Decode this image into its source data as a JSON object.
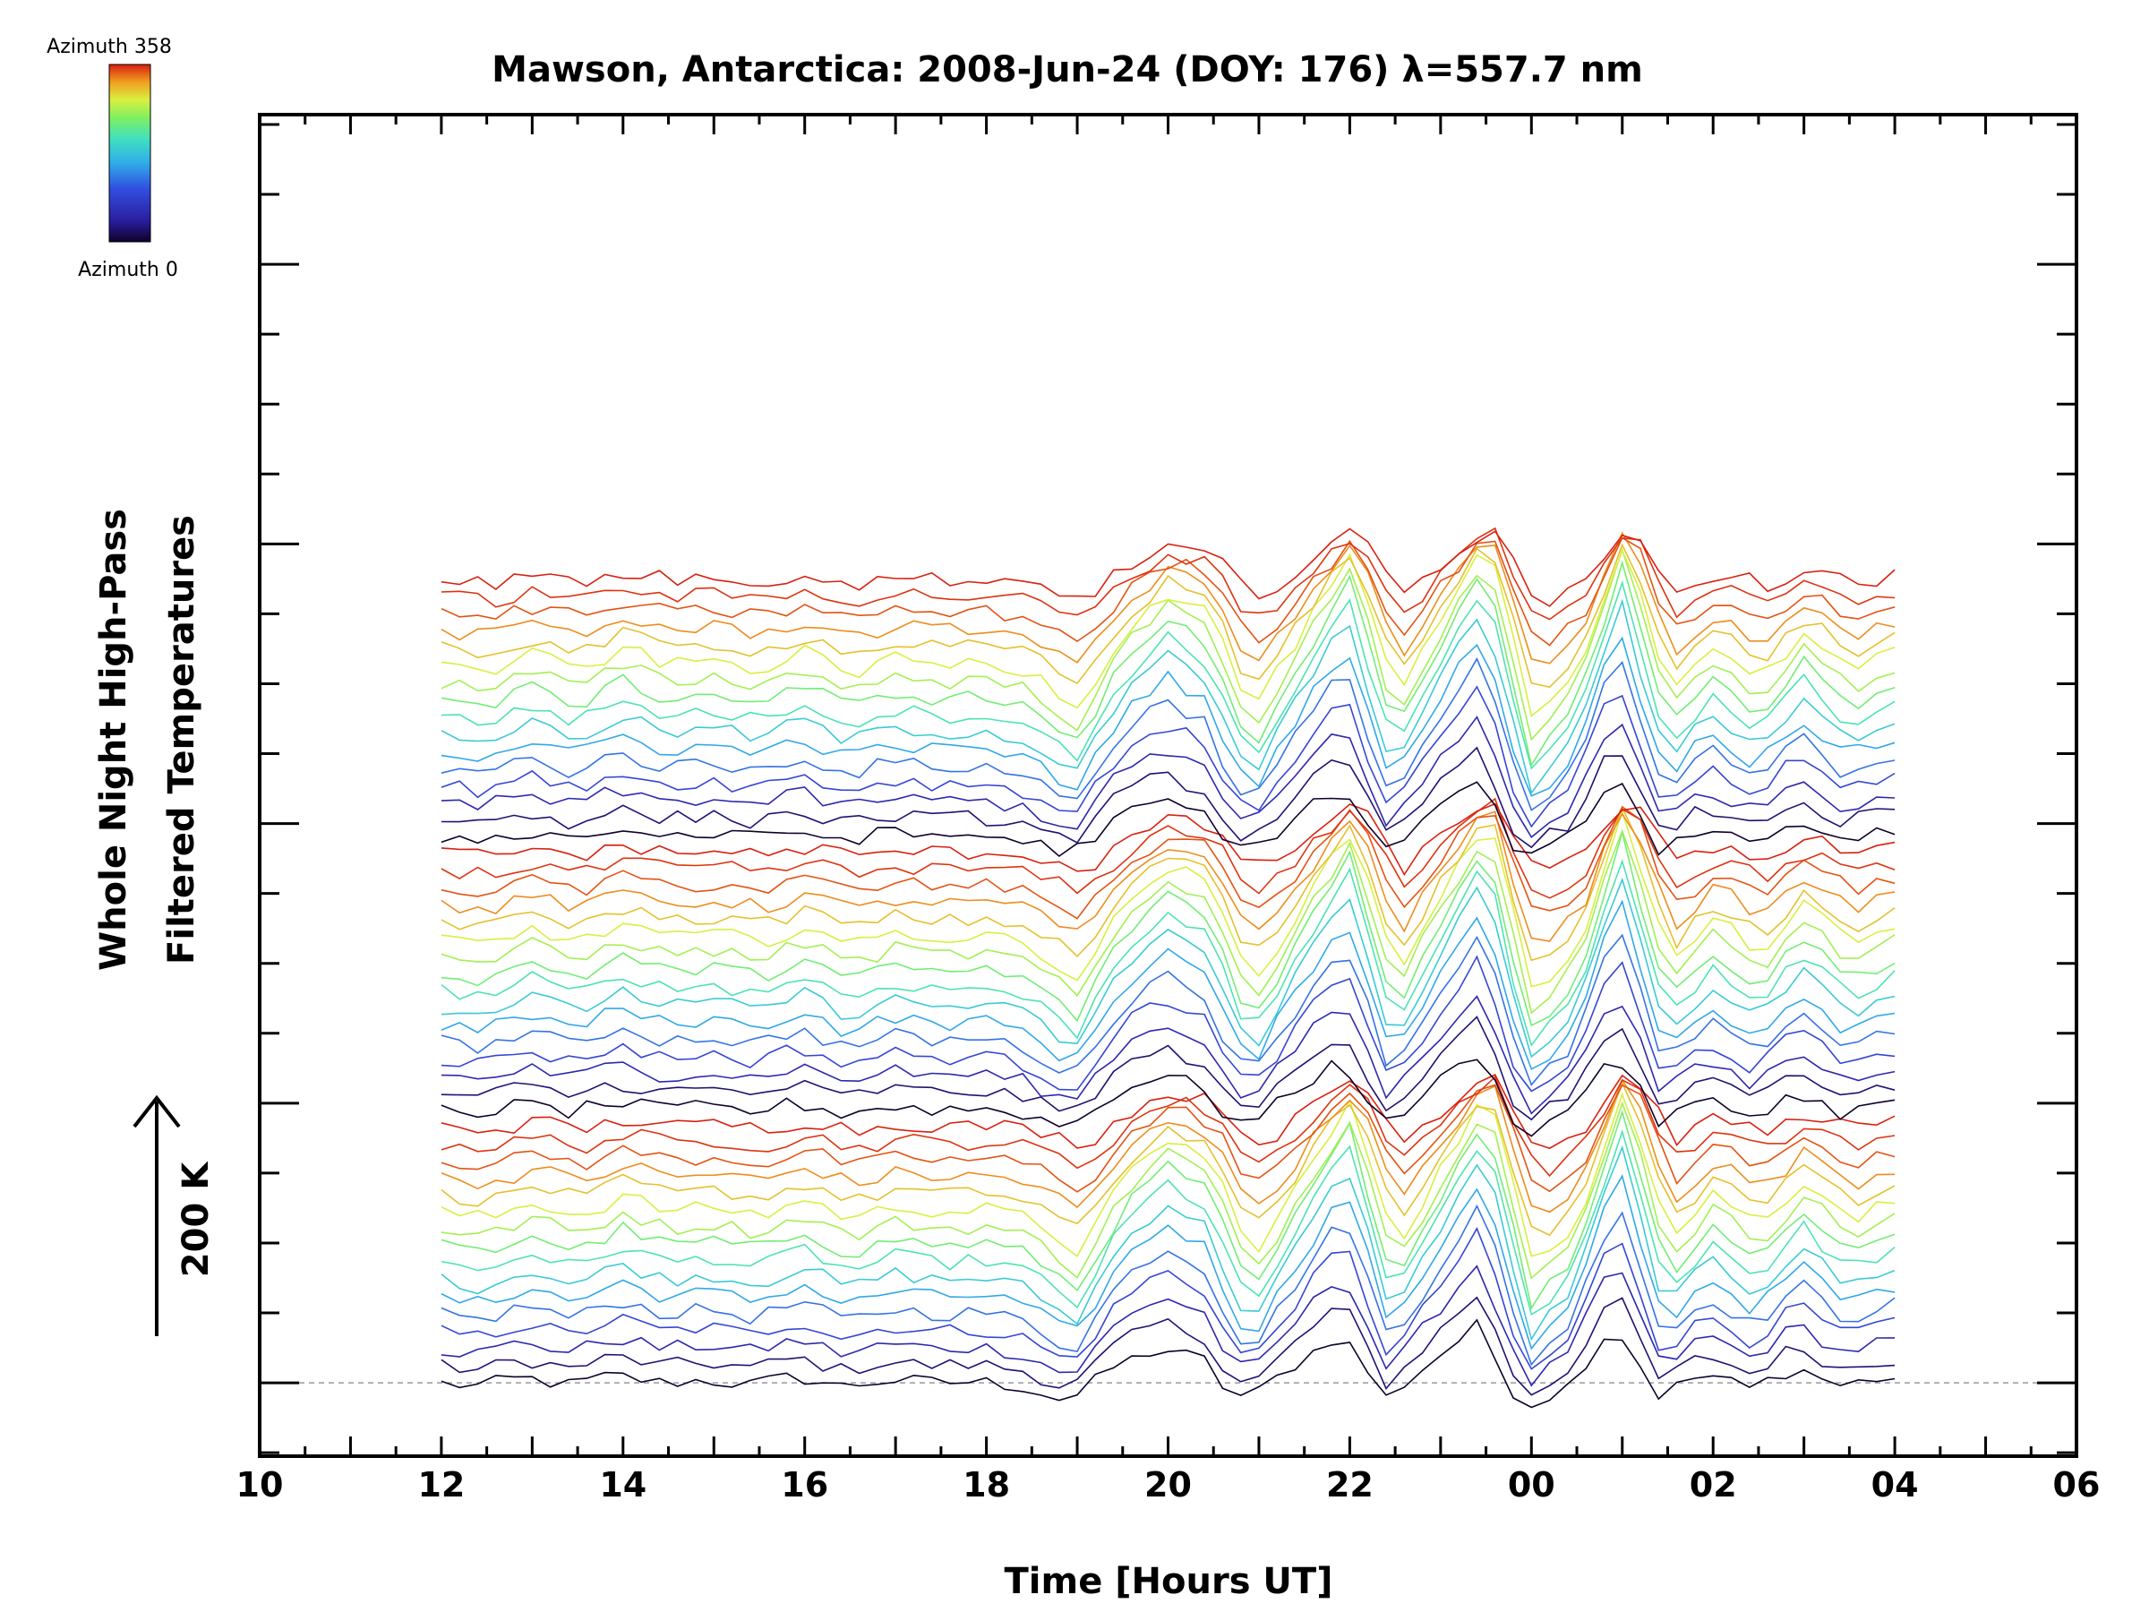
{
  "chart_data": {
    "type": "line",
    "title": "Mawson, Antarctica: 2008-Jun-24 (DOY: 176) λ=557.7 nm",
    "xlabel": "Time [Hours UT]",
    "ylabel_lines": [
      "Whole Night High-Pass",
      "Filtered Temperatures"
    ],
    "scale_label": "200 K",
    "colorbar": {
      "top_label": "Azimuth  358",
      "bottom_label": "Azimuth  0"
    },
    "x_ticks": [
      "10",
      "12",
      "14",
      "16",
      "18",
      "20",
      "22",
      "00",
      "02",
      "04",
      "06"
    ],
    "xlim_hours": [
      10,
      30
    ],
    "data_range_hours": [
      12.0,
      28.15
    ],
    "series_count": 48,
    "azimuth_range": [
      0,
      358
    ],
    "offset_per_series_K": 16.3,
    "grid": false,
    "baseline_dashed": true,
    "baseline_K": 0,
    "ylim_K": [
      -70,
      1210
    ],
    "base_profile": {
      "x": [
        12.0,
        12.5,
        13.0,
        13.5,
        14.0,
        14.5,
        15.0,
        15.5,
        16.0,
        16.5,
        17.0,
        17.5,
        18.0,
        18.5,
        19.0,
        19.5,
        20.0,
        20.5,
        20.75,
        21.0,
        21.5,
        22.0,
        22.5,
        23.0,
        23.5,
        24.0,
        24.5,
        25.0,
        25.5,
        26.0,
        26.5,
        27.0,
        27.5,
        28.0,
        28.15
      ],
      "y": [
        0,
        -5,
        8,
        -4,
        12,
        0,
        4,
        -3,
        10,
        -6,
        5,
        0,
        2,
        -6,
        -30,
        25,
        55,
        35,
        -15,
        -25,
        30,
        80,
        -25,
        35,
        90,
        -40,
        -5,
        95,
        -20,
        15,
        -10,
        25,
        -5,
        10,
        5
      ]
    }
  },
  "colors": {
    "axis": "#000000",
    "baseline": "#999999",
    "azimuth_scale": [
      "#10002a",
      "#2a1ea0",
      "#3850e0",
      "#30a8e8",
      "#40e0c8",
      "#80f060",
      "#d8f040",
      "#f0a020",
      "#e04010",
      "#d82010"
    ]
  }
}
